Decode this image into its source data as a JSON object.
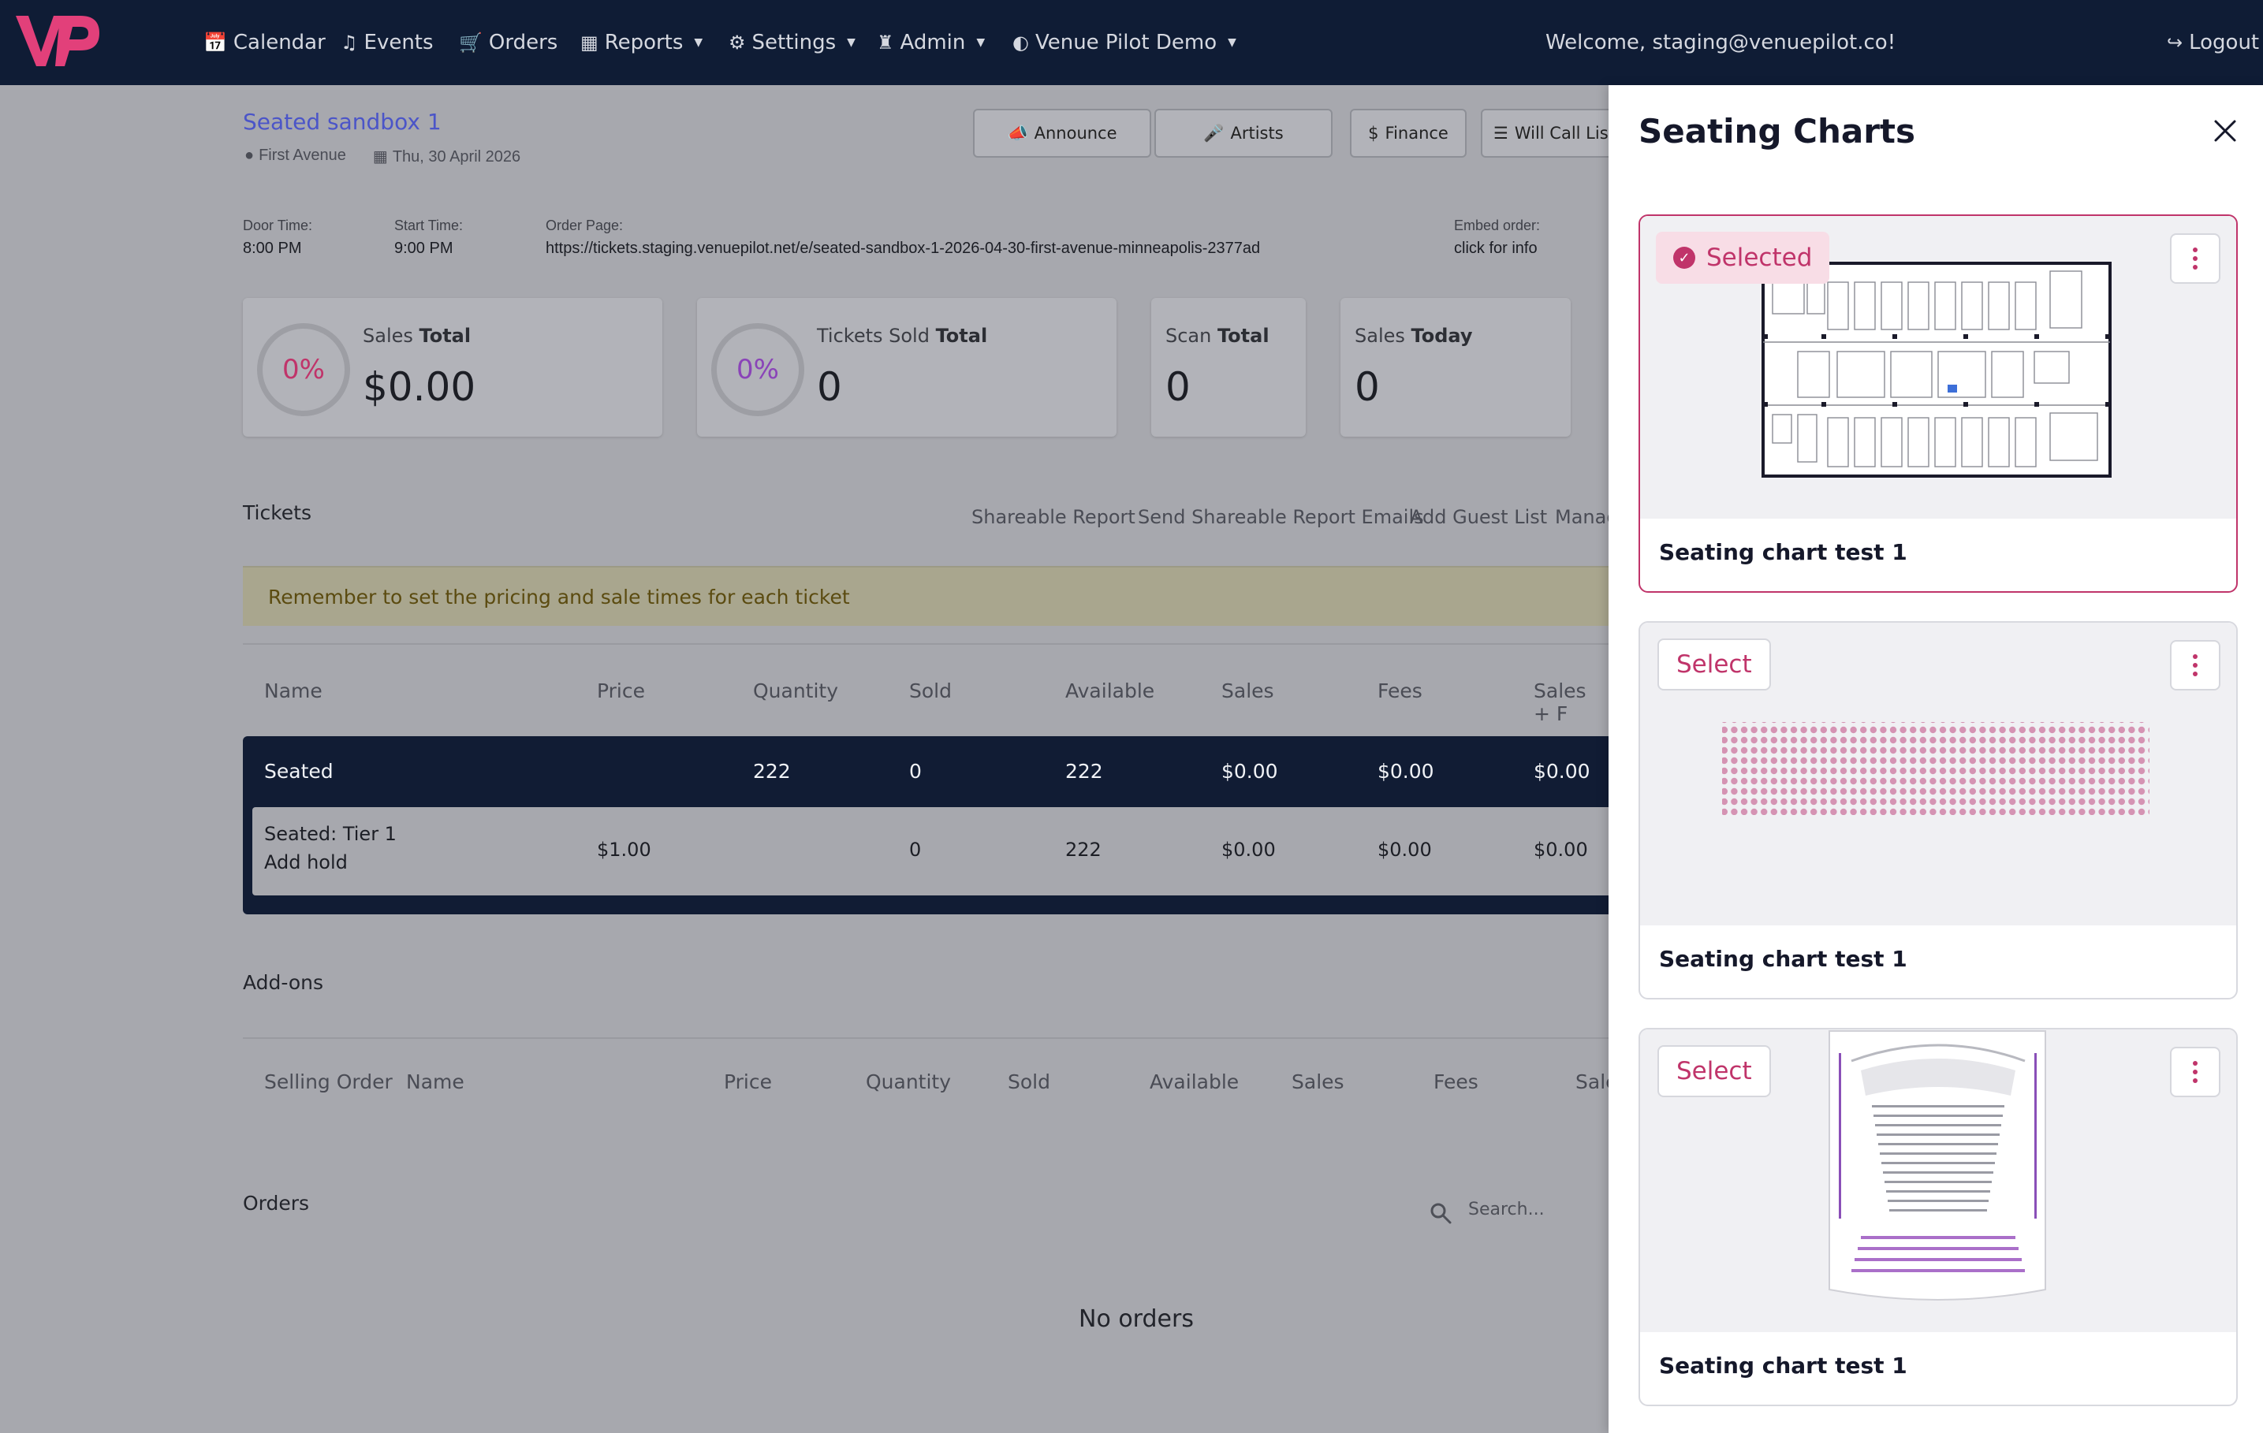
{
  "nav": {
    "items": [
      {
        "label": "Calendar",
        "icon": "calendar-icon",
        "dropdown": false
      },
      {
        "label": "Events",
        "icon": "music-note-icon",
        "dropdown": false
      },
      {
        "label": "Orders",
        "icon": "cart-icon",
        "dropdown": false
      },
      {
        "label": "Reports",
        "icon": "grid-icon",
        "dropdown": true
      },
      {
        "label": "Settings",
        "icon": "gear-icon",
        "dropdown": true
      },
      {
        "label": "Admin",
        "icon": "chess-icon",
        "dropdown": true
      },
      {
        "label": "Venue Pilot Demo",
        "icon": "half-circle-icon",
        "dropdown": true
      }
    ],
    "welcome": "Welcome, staging@venuepilot.co!",
    "logout": "Logout",
    "brand_color": "#e2407a"
  },
  "event": {
    "title": "Seated sandbox 1",
    "venue": "First Avenue",
    "date": "Thu, 30 April 2026",
    "buttons": {
      "announce": "Announce",
      "artists": "Artists",
      "finance": "Finance",
      "will_call": "Will Call List"
    },
    "door_time_label": "Door Time:",
    "door_time": "8:00 PM",
    "start_time_label": "Start Time:",
    "start_time": "9:00 PM",
    "order_page_label": "Order Page:",
    "order_page": "https://tickets.staging.venuepilot.net/e/seated-sandbox-1-2026-04-30-first-avenue-minneapolis-2377ad",
    "embed_label": "Embed order:",
    "embed_value": "click for info"
  },
  "stats": [
    {
      "label": "Sales",
      "label_bold": "Total",
      "value": "$0.00",
      "percent": "0%",
      "percent_color": "#c0346a"
    },
    {
      "label": "Tickets Sold",
      "label_bold": "Total",
      "value": "0",
      "percent": "0%",
      "percent_color": "#8a44b8"
    },
    {
      "label": "Scan",
      "label_bold": "Total",
      "value": "0"
    },
    {
      "label": "Sales",
      "label_bold": "Today",
      "value": "0"
    }
  ],
  "tickets": {
    "title": "Tickets",
    "links": [
      "Shareable Report",
      "Send Shareable Report Emails",
      "Add Guest List",
      "Manag"
    ],
    "alert": "Remember to set the pricing and sale times for each ticket",
    "columns": [
      "Name",
      "Price",
      "Quantity",
      "Sold",
      "Available",
      "Sales",
      "Fees",
      "Sales + F"
    ],
    "group_row": {
      "name": "Seated",
      "quantity": "222",
      "sold": "0",
      "available": "222",
      "sales": "$0.00",
      "fees": "$0.00",
      "sales_fees": "$0.00"
    },
    "tier_row": {
      "name": "Seated: Tier 1",
      "add_hold": "Add hold",
      "price": "$1.00",
      "sold": "0",
      "available": "222",
      "sales": "$0.00",
      "fees": "$0.00",
      "sales_fees": "$0.00"
    }
  },
  "addons": {
    "title": "Add-ons",
    "columns": [
      "Selling Order",
      "Name",
      "Price",
      "Quantity",
      "Sold",
      "Available",
      "Sales",
      "Fees",
      "Sale"
    ]
  },
  "orders": {
    "title": "Orders",
    "search_placeholder": "Search...",
    "empty": "No orders"
  },
  "panel": {
    "title": "Seating Charts",
    "selected_label": "Selected",
    "select_label": "Select",
    "accent": "#c0346a",
    "charts": [
      {
        "name": "Seating chart test 1",
        "selected": true,
        "preview": "floorplan"
      },
      {
        "name": "Seating chart test 1",
        "selected": false,
        "preview": "dot-grid"
      },
      {
        "name": "Seating chart test 1",
        "selected": false,
        "preview": "theater"
      }
    ]
  }
}
